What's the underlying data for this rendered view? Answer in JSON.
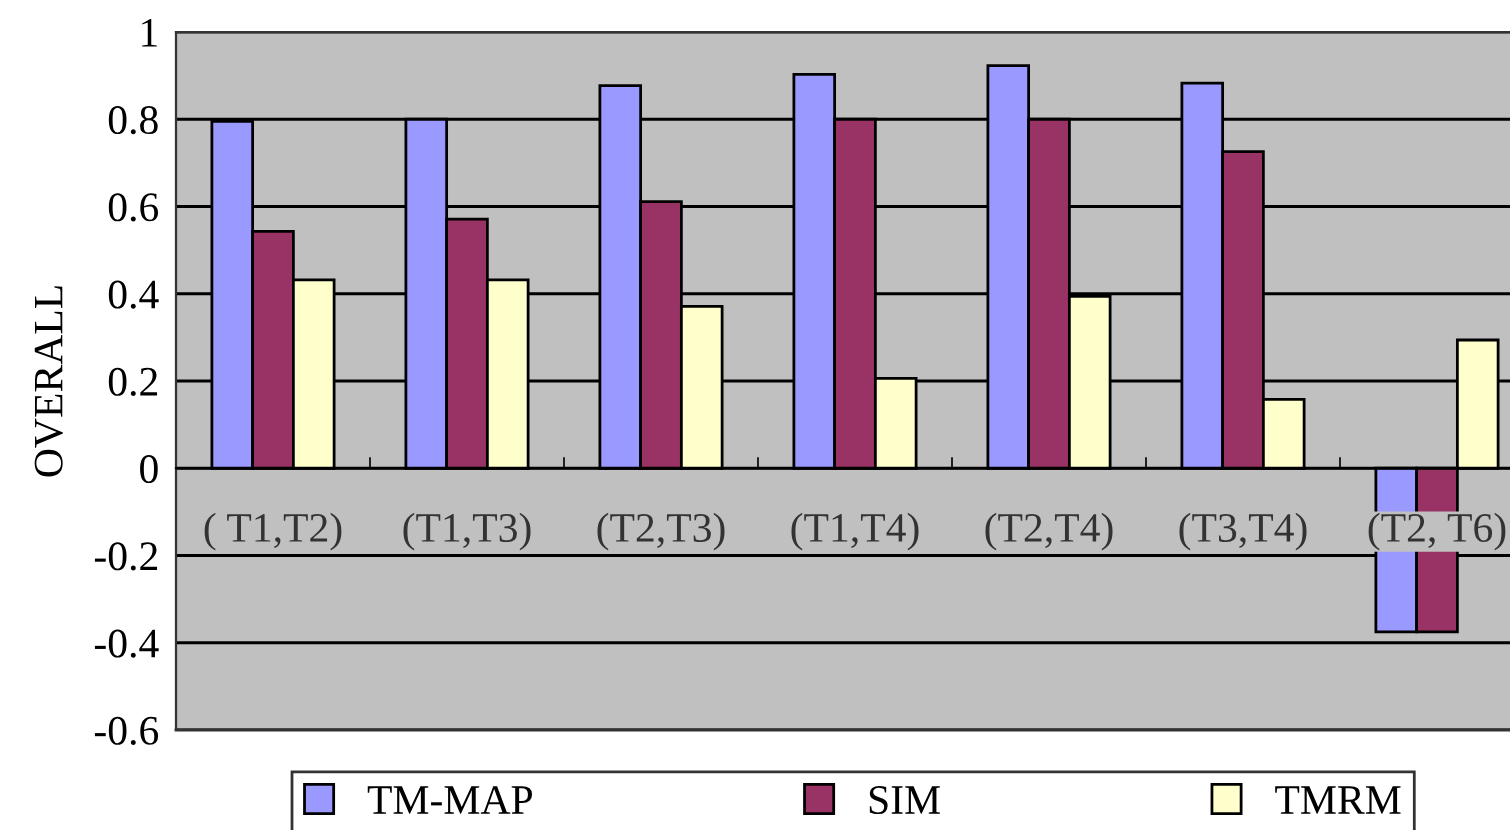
{
  "chart_data": {
    "type": "bar",
    "ylabel": "OVERALL",
    "categories": [
      "( T1,T2)",
      "(T1,T3)",
      "(T2,T3)",
      "(T1,T4)",
      "(T2,T4)",
      "(T3,T4)",
      "(T2, T6)"
    ],
    "series": [
      {
        "name": "TM-MAP",
        "color": "#9999ff",
        "values": [
          0.795,
          0.8,
          0.877,
          0.903,
          0.923,
          0.883,
          -0.375
        ]
      },
      {
        "name": "SIM",
        "color": "#993366",
        "values": [
          0.543,
          0.571,
          0.611,
          0.8,
          0.8,
          0.726,
          -0.375
        ]
      },
      {
        "name": "TMRM",
        "color": "#ffffcc",
        "values": [
          0.432,
          0.432,
          0.371,
          0.206,
          0.394,
          0.158,
          0.294
        ]
      }
    ],
    "ylim": [
      -0.6,
      1
    ],
    "yticks": [
      {
        "value": -0.6,
        "label": "-0.6"
      },
      {
        "value": -0.4,
        "label": "-0.4"
      },
      {
        "value": -0.2,
        "label": "-0.2"
      },
      0,
      0.2,
      0.4,
      0.6,
      0.8,
      1
    ],
    "grid": "y",
    "legend": "bottom"
  }
}
